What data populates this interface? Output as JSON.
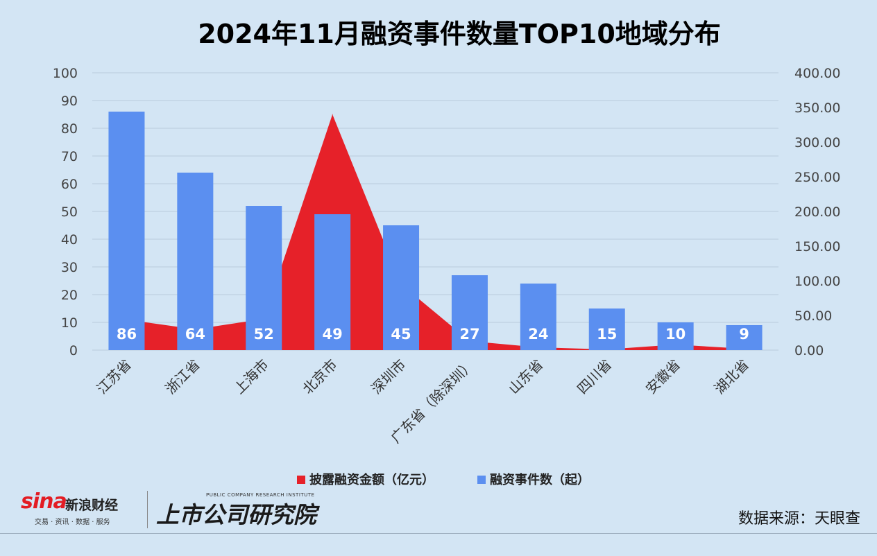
{
  "chart_data": {
    "type": "bar+area",
    "title": "2024年11月融资事件数量TOP10地域分布",
    "categories": [
      "江苏省",
      "浙江省",
      "上海市",
      "北京市",
      "深圳市",
      "广东省（除深圳）",
      "山东省",
      "四川省",
      "安徽省",
      "湖北省"
    ],
    "series": [
      {
        "name": "融资事件数（起）",
        "type": "bar",
        "axis": "left",
        "color": "#5b8ff0",
        "values": [
          86,
          64,
          52,
          49,
          45,
          27,
          24,
          15,
          10,
          9
        ],
        "data_labels": [
          "86",
          "64",
          "52",
          "49",
          "45",
          "27",
          "24",
          "15",
          "10",
          "9"
        ]
      },
      {
        "name": "披露融资金额（亿元）",
        "type": "area",
        "axis": "right",
        "color": "#e62129",
        "values": [
          44,
          30,
          45,
          340,
          95,
          13,
          4,
          1,
          8,
          2
        ]
      }
    ],
    "y_left": {
      "min": 0,
      "max": 100,
      "ticks": [
        "0",
        "10",
        "20",
        "30",
        "40",
        "50",
        "60",
        "70",
        "80",
        "90",
        "100"
      ]
    },
    "y_right": {
      "min": 0,
      "max": 400,
      "ticks": [
        "0.00",
        "50.00",
        "100.00",
        "150.00",
        "200.00",
        "250.00",
        "300.00",
        "350.00",
        "400.00"
      ]
    },
    "grid": true,
    "legend_position": "bottom"
  },
  "branding": {
    "sina_word": "sina",
    "sina_name": "新浪财经",
    "sina_tagline": "交易 · 资讯 · 数据 · 服务",
    "inst_en": "PUBLIC COMPANY RESEARCH INSTITUTE",
    "inst_cn": "上市公司研究院"
  },
  "source": "数据来源：天眼查"
}
